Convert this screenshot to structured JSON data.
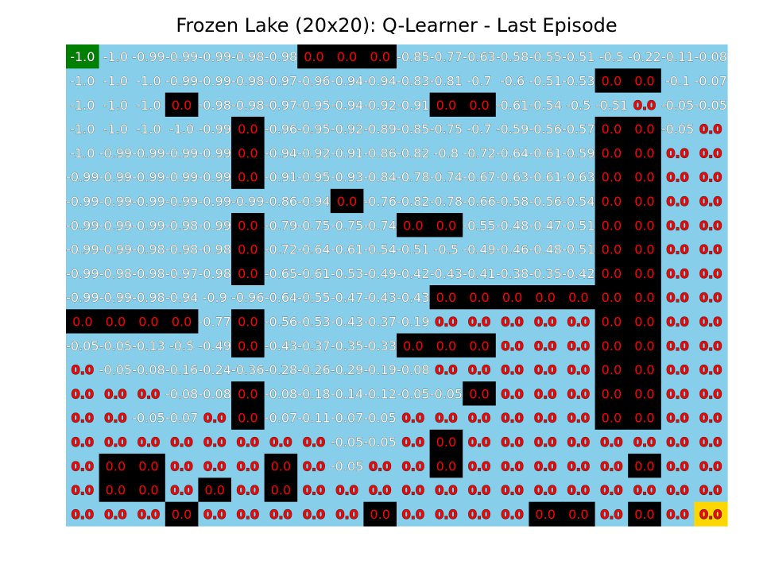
{
  "chart_data": {
    "type": "heatmap",
    "title": "Frozen Lake (20x20): Q-Learner - Last Episode",
    "rows": 20,
    "cols": 20,
    "colors": {
      "ice": "#87ceeb",
      "hole": "#000000",
      "start": "#008000",
      "goal": "#ffd700"
    },
    "start": [
      0,
      0
    ],
    "goal": [
      19,
      19
    ],
    "holes": [
      [
        0,
        7
      ],
      [
        0,
        8
      ],
      [
        0,
        9
      ],
      [
        1,
        16
      ],
      [
        1,
        17
      ],
      [
        2,
        3
      ],
      [
        2,
        11
      ],
      [
        2,
        12
      ],
      [
        3,
        5
      ],
      [
        3,
        16
      ],
      [
        3,
        17
      ],
      [
        4,
        5
      ],
      [
        4,
        16
      ],
      [
        4,
        17
      ],
      [
        5,
        5
      ],
      [
        5,
        16
      ],
      [
        5,
        17
      ],
      [
        6,
        8
      ],
      [
        6,
        16
      ],
      [
        6,
        17
      ],
      [
        7,
        5
      ],
      [
        7,
        10
      ],
      [
        7,
        11
      ],
      [
        7,
        16
      ],
      [
        7,
        17
      ],
      [
        8,
        5
      ],
      [
        8,
        16
      ],
      [
        8,
        17
      ],
      [
        9,
        5
      ],
      [
        9,
        16
      ],
      [
        9,
        17
      ],
      [
        10,
        11
      ],
      [
        10,
        12
      ],
      [
        10,
        13
      ],
      [
        10,
        14
      ],
      [
        10,
        15
      ],
      [
        10,
        16
      ],
      [
        10,
        17
      ],
      [
        11,
        0
      ],
      [
        11,
        1
      ],
      [
        11,
        2
      ],
      [
        11,
        3
      ],
      [
        11,
        5
      ],
      [
        11,
        16
      ],
      [
        11,
        17
      ],
      [
        12,
        5
      ],
      [
        12,
        10
      ],
      [
        12,
        11
      ],
      [
        12,
        12
      ],
      [
        12,
        16
      ],
      [
        12,
        17
      ],
      [
        13,
        16
      ],
      [
        13,
        17
      ],
      [
        14,
        5
      ],
      [
        14,
        12
      ],
      [
        14,
        16
      ],
      [
        14,
        17
      ],
      [
        15,
        5
      ],
      [
        15,
        16
      ],
      [
        15,
        17
      ],
      [
        16,
        11
      ],
      [
        17,
        1
      ],
      [
        17,
        2
      ],
      [
        17,
        6
      ],
      [
        17,
        11
      ],
      [
        17,
        17
      ],
      [
        18,
        1
      ],
      [
        18,
        2
      ],
      [
        18,
        4
      ],
      [
        18,
        6
      ],
      [
        19,
        3
      ],
      [
        19,
        9
      ],
      [
        19,
        14
      ],
      [
        19,
        15
      ],
      [
        19,
        17
      ]
    ],
    "values": [
      [
        "-1.0",
        "-1.0",
        "-0.99",
        "-0.99",
        "-0.99",
        "-0.98",
        "-0.98",
        "0.0",
        "0.0",
        "0.0",
        "-0.85",
        "-0.77",
        "-0.63",
        "-0.58",
        "-0.55",
        "-0.51",
        "-0.5",
        "-0.22",
        "-0.11",
        "-0.08"
      ],
      [
        "-1.0",
        "-1.0",
        "-1.0",
        "-0.99",
        "-0.99",
        "-0.98",
        "-0.97",
        "-0.96",
        "-0.94",
        "-0.94",
        "-0.83",
        "-0.81",
        "-0.7",
        "-0.6",
        "-0.51",
        "-0.53",
        "0.0",
        "0.0",
        "-0.1",
        "-0.07"
      ],
      [
        "-1.0",
        "-1.0",
        "-1.0",
        "0.0",
        "-0.98",
        "-0.98",
        "-0.97",
        "-0.95",
        "-0.94",
        "-0.92",
        "-0.91",
        "0.0",
        "0.0",
        "-0.61",
        "-0.54",
        "-0.5",
        "-0.51",
        "0.0",
        "-0.05",
        "-0.05"
      ],
      [
        "-1.0",
        "-1.0",
        "-1.0",
        "-1.0",
        "-0.99",
        "0.0",
        "-0.96",
        "-0.95",
        "-0.92",
        "-0.89",
        "-0.85",
        "-0.75",
        "-0.7",
        "-0.59",
        "-0.56",
        "-0.57",
        "0.0",
        "0.0",
        "-0.05",
        "0.0"
      ],
      [
        "-1.0",
        "-0.99",
        "-0.99",
        "-0.99",
        "-0.99",
        "0.0",
        "-0.94",
        "-0.92",
        "-0.91",
        "-0.86",
        "-0.82",
        "-0.8",
        "-0.72",
        "-0.64",
        "-0.61",
        "-0.59",
        "0.0",
        "0.0",
        "0.0",
        "0.0"
      ],
      [
        "-0.99",
        "-0.99",
        "-0.99",
        "-0.99",
        "-0.99",
        "0.0",
        "-0.91",
        "-0.95",
        "-0.93",
        "-0.84",
        "-0.78",
        "-0.74",
        "-0.67",
        "-0.63",
        "-0.61",
        "-0.63",
        "0.0",
        "0.0",
        "0.0",
        "0.0"
      ],
      [
        "-0.99",
        "-0.99",
        "-0.99",
        "-0.99",
        "-0.99",
        "-0.99",
        "-0.86",
        "-0.94",
        "0.0",
        "-0.76",
        "-0.82",
        "-0.78",
        "-0.66",
        "-0.58",
        "-0.56",
        "-0.54",
        "0.0",
        "0.0",
        "0.0",
        "0.0"
      ],
      [
        "-0.99",
        "-0.99",
        "-0.99",
        "-0.98",
        "-0.99",
        "0.0",
        "-0.79",
        "-0.75",
        "-0.75",
        "-0.74",
        "0.0",
        "0.0",
        "-0.55",
        "-0.48",
        "-0.47",
        "-0.51",
        "0.0",
        "0.0",
        "0.0",
        "0.0"
      ],
      [
        "-0.99",
        "-0.99",
        "-0.98",
        "-0.98",
        "-0.98",
        "0.0",
        "-0.72",
        "-0.64",
        "-0.61",
        "-0.54",
        "-0.51",
        "-0.5",
        "-0.49",
        "-0.46",
        "-0.48",
        "-0.51",
        "0.0",
        "0.0",
        "0.0",
        "0.0"
      ],
      [
        "-0.99",
        "-0.98",
        "-0.98",
        "-0.97",
        "-0.98",
        "0.0",
        "-0.65",
        "-0.61",
        "-0.53",
        "-0.49",
        "-0.42",
        "-0.43",
        "-0.41",
        "-0.38",
        "-0.35",
        "-0.42",
        "0.0",
        "0.0",
        "0.0",
        "0.0"
      ],
      [
        "-0.99",
        "-0.99",
        "-0.98",
        "-0.94",
        "-0.9",
        "-0.96",
        "-0.64",
        "-0.55",
        "-0.47",
        "-0.43",
        "-0.43",
        "0.0",
        "0.0",
        "0.0",
        "0.0",
        "0.0",
        "0.0",
        "0.0",
        "0.0",
        "0.0"
      ],
      [
        "0.0",
        "0.0",
        "0.0",
        "0.0",
        "-0.77",
        "0.0",
        "-0.56",
        "-0.53",
        "-0.43",
        "-0.37",
        "-0.19",
        "0.0",
        "0.0",
        "0.0",
        "0.0",
        "0.0",
        "0.0",
        "0.0",
        "0.0",
        "0.0"
      ],
      [
        "-0.05",
        "-0.05",
        "-0.13",
        "-0.5",
        "-0.49",
        "0.0",
        "-0.43",
        "-0.37",
        "-0.35",
        "-0.33",
        "0.0",
        "0.0",
        "0.0",
        "0.0",
        "0.0",
        "0.0",
        "0.0",
        "0.0",
        "0.0",
        "0.0"
      ],
      [
        "0.0",
        "-0.05",
        "-0.08",
        "-0.16",
        "-0.24",
        "-0.36",
        "-0.28",
        "-0.26",
        "-0.29",
        "-0.19",
        "-0.08",
        "0.0",
        "0.0",
        "0.0",
        "0.0",
        "0.0",
        "0.0",
        "0.0",
        "0.0",
        "0.0"
      ],
      [
        "0.0",
        "0.0",
        "0.0",
        "-0.08",
        "-0.08",
        "0.0",
        "-0.08",
        "-0.18",
        "-0.14",
        "-0.12",
        "-0.05",
        "-0.05",
        "0.0",
        "0.0",
        "0.0",
        "0.0",
        "0.0",
        "0.0",
        "0.0",
        "0.0"
      ],
      [
        "0.0",
        "0.0",
        "-0.05",
        "-0.07",
        "0.0",
        "0.0",
        "-0.07",
        "-0.11",
        "-0.07",
        "-0.05",
        "0.0",
        "0.0",
        "0.0",
        "0.0",
        "0.0",
        "0.0",
        "0.0",
        "0.0",
        "0.0",
        "0.0"
      ],
      [
        "0.0",
        "0.0",
        "0.0",
        "0.0",
        "0.0",
        "0.0",
        "0.0",
        "0.0",
        "-0.05",
        "-0.05",
        "0.0",
        "0.0",
        "0.0",
        "0.0",
        "0.0",
        "0.0",
        "0.0",
        "0.0",
        "0.0",
        "0.0"
      ],
      [
        "0.0",
        "0.0",
        "0.0",
        "0.0",
        "0.0",
        "0.0",
        "0.0",
        "0.0",
        "-0.05",
        "0.0",
        "0.0",
        "0.0",
        "0.0",
        "0.0",
        "0.0",
        "0.0",
        "0.0",
        "0.0",
        "0.0",
        "0.0"
      ],
      [
        "0.0",
        "0.0",
        "0.0",
        "0.0",
        "0.0",
        "0.0",
        "0.0",
        "0.0",
        "0.0",
        "0.0",
        "0.0",
        "0.0",
        "0.0",
        "0.0",
        "0.0",
        "0.0",
        "0.0",
        "0.0",
        "0.0",
        "0.0"
      ],
      [
        "0.0",
        "0.0",
        "0.0",
        "0.0",
        "0.0",
        "0.0",
        "0.0",
        "0.0",
        "0.0",
        "0.0",
        "0.0",
        "0.0",
        "0.0",
        "0.0",
        "0.0",
        "0.0",
        "0.0",
        "0.0",
        "0.0",
        "0.0"
      ]
    ]
  }
}
